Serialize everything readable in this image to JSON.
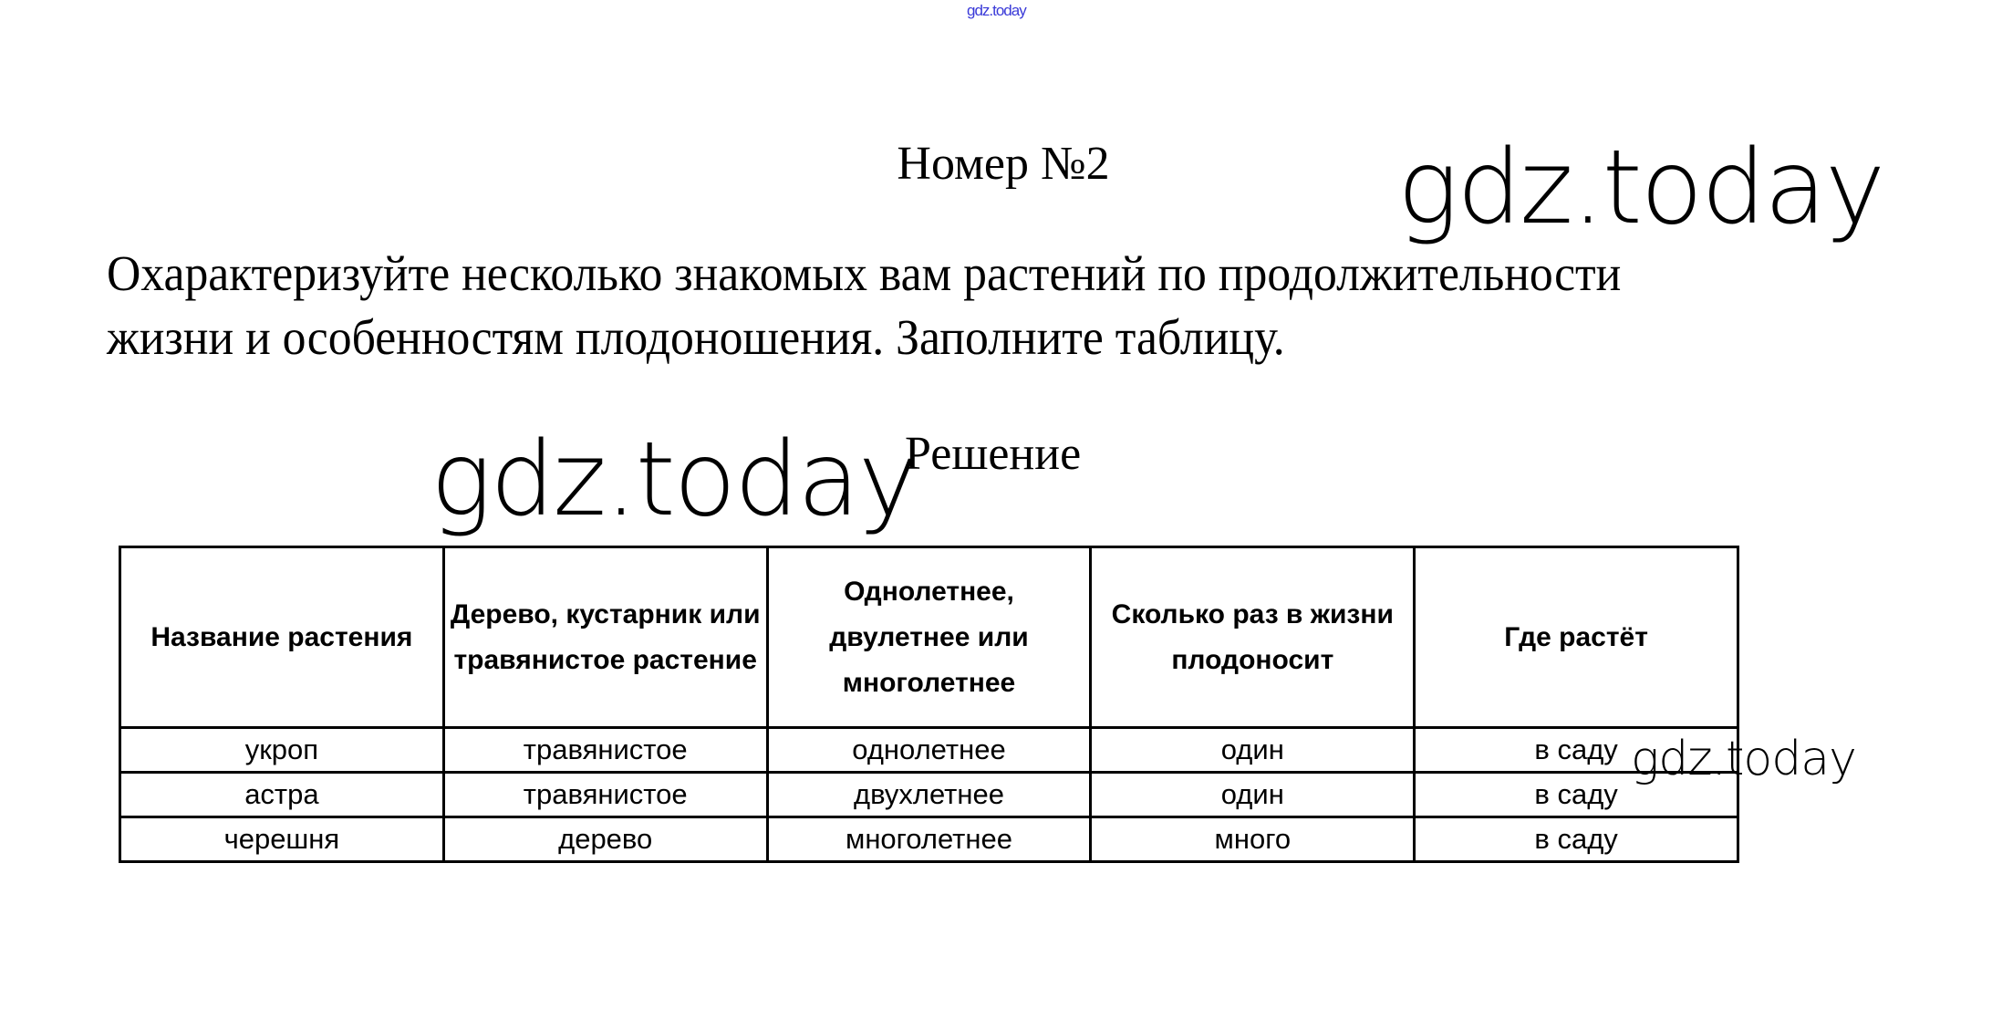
{
  "watermark_small": "gdz.today",
  "watermark": "gdz.today",
  "title": "Номер №2",
  "task": {
    "line1": "Охарактеризуйте несколько знакомых вам растений по продолжительности",
    "line2": "жизни и особенностям плодоношения. Заполните таблицу."
  },
  "solution_label": "Решение",
  "table": {
    "headers": [
      "Название растения",
      "Дерево, кустарник или травянистое растение",
      "Однолетнее, двулетнее или многолетнее",
      "Сколько раз в жизни плодоносит",
      "Где растёт"
    ],
    "rows": [
      [
        "укроп",
        "травянистое",
        "однолетнее",
        "один",
        "в саду"
      ],
      [
        "астра",
        "травянистое",
        "двухлетнее",
        "один",
        "в саду"
      ],
      [
        "черешня",
        "дерево",
        "многолетнее",
        "много",
        "в саду"
      ]
    ]
  },
  "colors": {
    "watermark_small": "#3a3ad8",
    "text": "#000000"
  }
}
